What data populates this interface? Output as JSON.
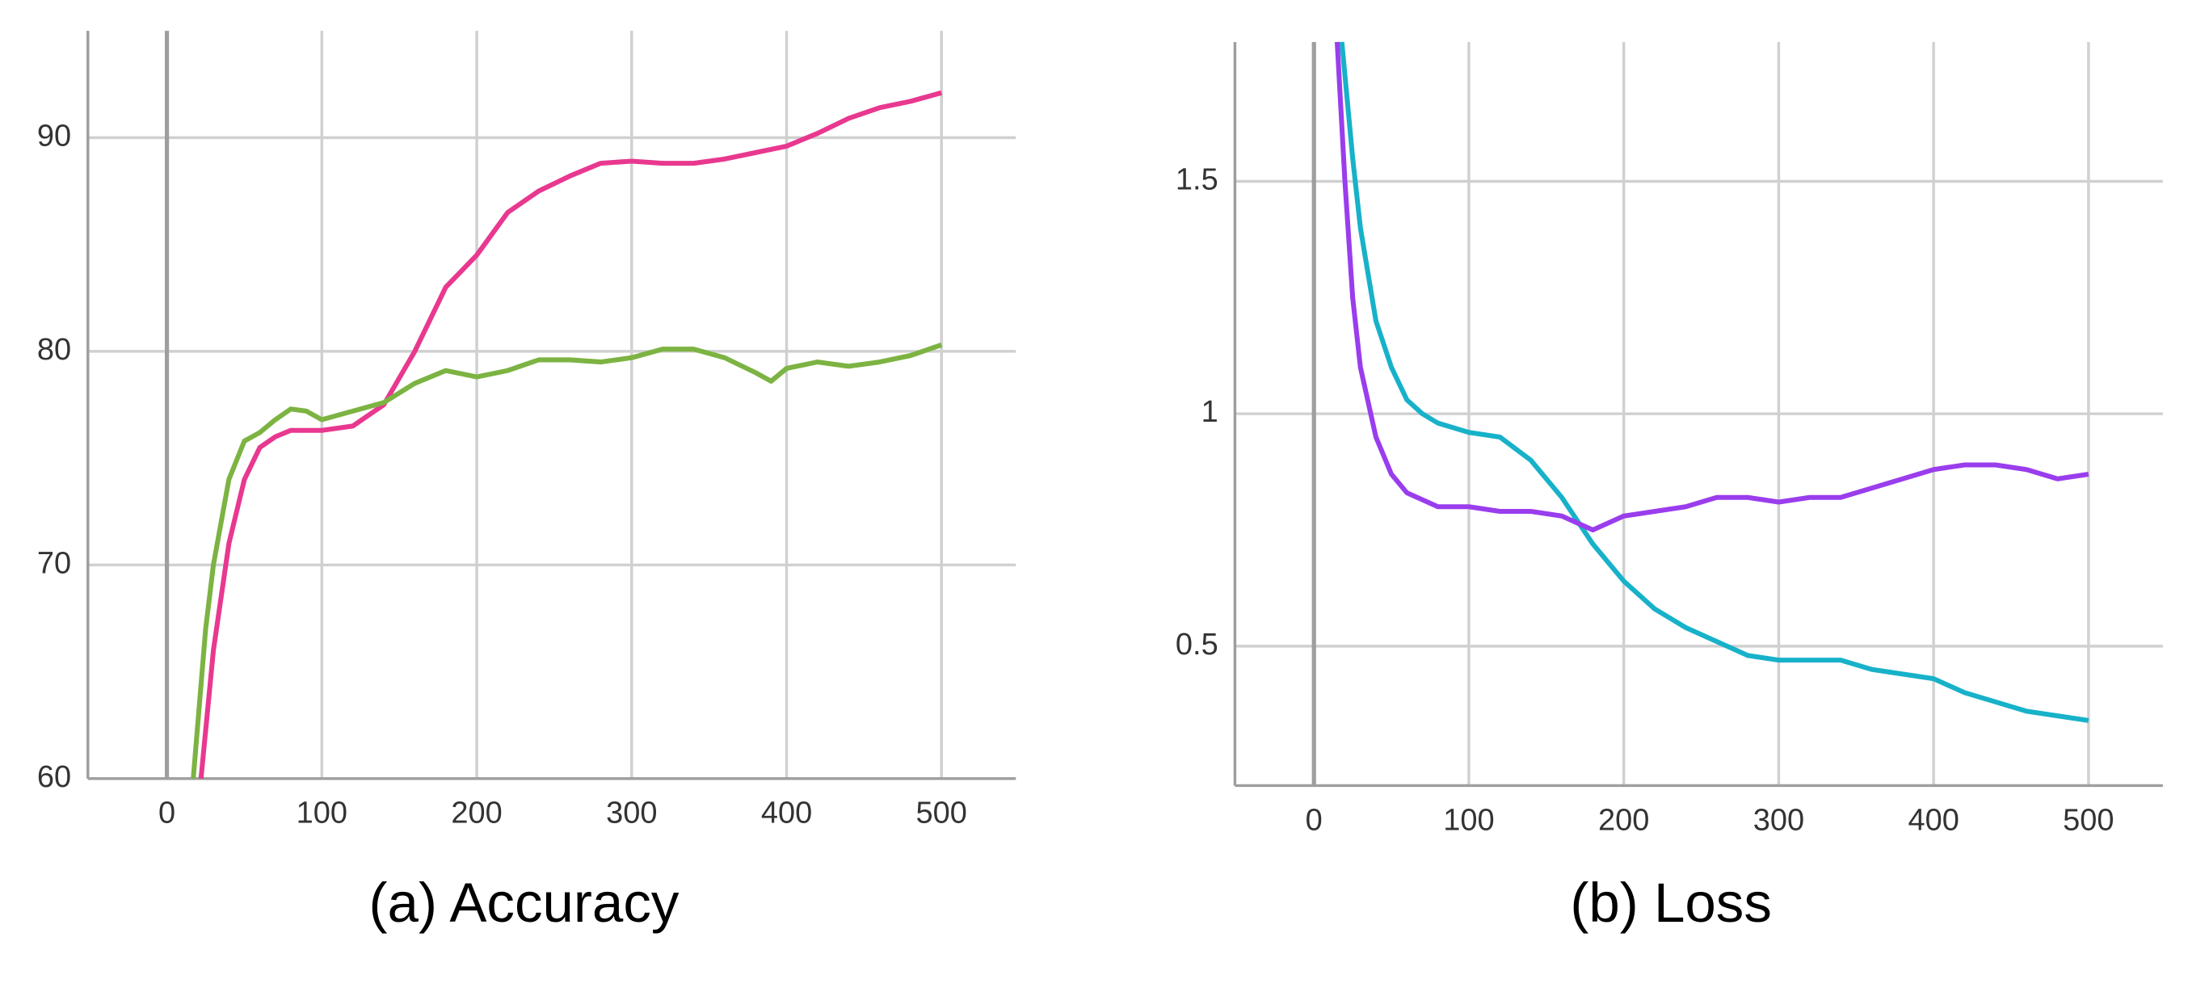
{
  "chart_data": [
    {
      "type": "line",
      "title": "(a) Accuracy",
      "xlim": [
        -51,
        548
      ],
      "xticks": [
        0,
        100,
        200,
        300,
        400,
        500
      ],
      "ylim": [
        60,
        95
      ],
      "yticks": [
        60,
        70,
        80,
        90
      ],
      "grid": true,
      "series": [
        {
          "color": "#e8388f",
          "x": [
            22,
            30,
            40,
            50,
            60,
            70,
            80,
            100,
            120,
            140,
            160,
            180,
            200,
            220,
            240,
            260,
            280,
            300,
            320,
            340,
            360,
            380,
            400,
            420,
            440,
            460,
            480,
            500
          ],
          "values": [
            60,
            66,
            71,
            74,
            75.5,
            76,
            76.3,
            76.3,
            76.5,
            77.5,
            80,
            83,
            84.5,
            86.5,
            87.5,
            88.2,
            88.8,
            88.9,
            88.8,
            88.8,
            89,
            89.3,
            89.6,
            90.2,
            90.9,
            91.4,
            91.7,
            92.1
          ]
        },
        {
          "color": "#7cb342",
          "x": [
            17,
            25,
            30,
            40,
            50,
            60,
            70,
            80,
            90,
            100,
            120,
            140,
            160,
            180,
            200,
            220,
            240,
            260,
            280,
            300,
            320,
            340,
            360,
            380,
            390,
            400,
            420,
            440,
            460,
            480,
            500
          ],
          "values": [
            60,
            67,
            70,
            74,
            75.8,
            76.2,
            76.8,
            77.3,
            77.2,
            76.8,
            77.2,
            77.6,
            78.5,
            79.1,
            78.8,
            79.1,
            79.6,
            79.6,
            79.5,
            79.7,
            80.1,
            80.1,
            79.7,
            79.0,
            78.6,
            79.2,
            79.5,
            79.3,
            79.5,
            79.8,
            80.3
          ]
        }
      ]
    },
    {
      "type": "line",
      "title": "(b) Loss",
      "xlim": [
        -51,
        548
      ],
      "xticks": [
        0,
        100,
        200,
        300,
        400,
        500
      ],
      "ylim": [
        0.2,
        1.8
      ],
      "yticks": [
        0.5,
        1,
        1.5
      ],
      "grid": true,
      "series": [
        {
          "color": "#17b2c9",
          "x": [
            18,
            25,
            30,
            40,
            50,
            60,
            70,
            80,
            100,
            120,
            140,
            160,
            180,
            200,
            220,
            240,
            260,
            280,
            300,
            320,
            340,
            360,
            380,
            400,
            420,
            440,
            460,
            480,
            500
          ],
          "values": [
            1.8,
            1.55,
            1.4,
            1.2,
            1.1,
            1.03,
            1.0,
            0.98,
            0.96,
            0.95,
            0.9,
            0.82,
            0.72,
            0.64,
            0.58,
            0.54,
            0.51,
            0.48,
            0.47,
            0.47,
            0.47,
            0.45,
            0.44,
            0.43,
            0.4,
            0.38,
            0.36,
            0.35,
            0.34
          ]
        },
        {
          "color": "#9a3ded",
          "x": [
            15,
            20,
            25,
            30,
            40,
            50,
            60,
            80,
            100,
            120,
            140,
            160,
            180,
            200,
            220,
            240,
            260,
            280,
            300,
            320,
            340,
            360,
            380,
            400,
            420,
            440,
            460,
            480,
            500
          ],
          "values": [
            1.8,
            1.5,
            1.25,
            1.1,
            0.95,
            0.87,
            0.83,
            0.8,
            0.8,
            0.79,
            0.79,
            0.78,
            0.75,
            0.78,
            0.79,
            0.8,
            0.82,
            0.82,
            0.81,
            0.82,
            0.82,
            0.84,
            0.86,
            0.88,
            0.89,
            0.89,
            0.88,
            0.86,
            0.87
          ]
        }
      ]
    }
  ]
}
